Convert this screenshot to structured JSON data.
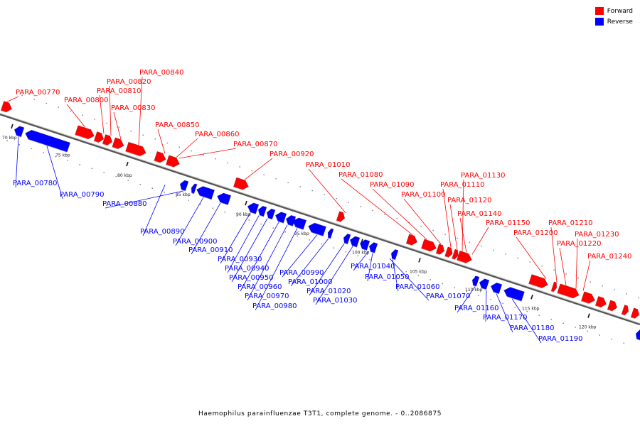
{
  "legend": {
    "forward_label": "Forward",
    "reverse_label": "Reverse",
    "forward_color": "#ff0000",
    "reverse_color": "#0000ff"
  },
  "caption": "Haemophilus parainfluenzae T3T1, complete genome. - 0..2086875",
  "ticks": [
    "70 kbp",
    "75 kbp",
    "80 kbp",
    "85 kbp",
    "90 kbp",
    "95 kbp",
    "100 kbp",
    "105 kbp",
    "110 kbp",
    "115 kbp",
    "120 kbp"
  ],
  "forward_genes": [
    "PARA_00770",
    "PARA_00800",
    "PARA_00810",
    "PARA_00820",
    "PARA_00830",
    "PARA_00840",
    "PARA_00850",
    "PARA_00860",
    "PARA_00870",
    "PARA_00920",
    "PARA_01010",
    "PARA_01080",
    "PARA_01090",
    "PARA_01100",
    "PARA_01110",
    "PARA_01120",
    "PARA_01130",
    "PARA_01140",
    "PARA_01150",
    "PARA_01200",
    "PARA_01210",
    "PARA_01220",
    "PARA_01230",
    "PARA_01240"
  ],
  "reverse_genes": [
    "PARA_00780",
    "PARA_00790",
    "PARA_00880",
    "PARA_00890",
    "PARA_00900",
    "PARA_00910",
    "PARA_00930",
    "PARA_00940",
    "PARA_00950",
    "PARA_00960",
    "PARA_00970",
    "PARA_00980",
    "PARA_00990",
    "PARA_01000",
    "PARA_01020",
    "PARA_01030",
    "PARA_01040",
    "PARA_01050",
    "PARA_01060",
    "PARA_01070",
    "PARA_01160",
    "PARA_01170",
    "PARA_01180",
    "PARA_01190"
  ]
}
